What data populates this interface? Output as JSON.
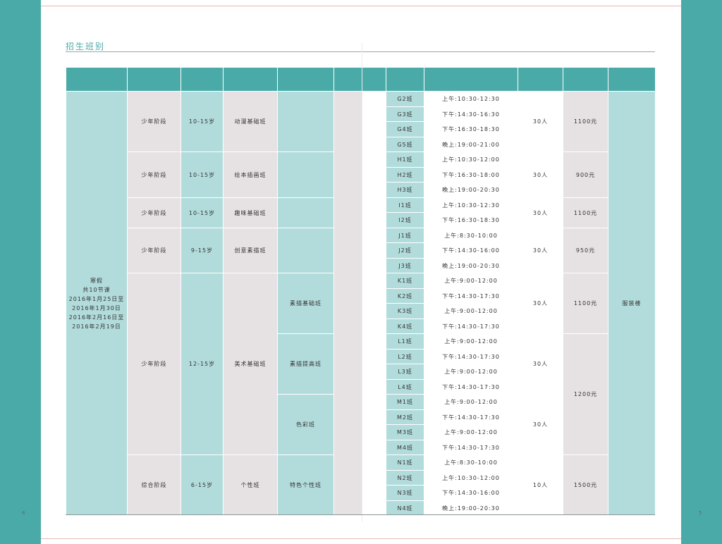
{
  "page": {
    "title": "招生班别",
    "page_left": "4",
    "page_right": "5"
  },
  "colors": {
    "accent": "#4aaaa8",
    "teal_light": "#b2dcdb",
    "gray_light": "#e6e1e2",
    "rule": "#e2b8b0"
  },
  "table": {
    "term": "寒假\n共10节课\n2016年1月25日至\n2016年1月30日\n2016年2月16日至\n2016年2月19日",
    "location": "服装楼",
    "groups": [
      {
        "stage": "少年阶段",
        "age": "10-15岁",
        "course": "动漫基础班",
        "capacity": "30人",
        "price": "1100元"
      },
      {
        "stage": "少年阶段",
        "age": "10-15岁",
        "course": "绘本插画班",
        "capacity": "30人",
        "price": "900元"
      },
      {
        "stage": "少年阶段",
        "age": "10-15岁",
        "course": "趣味基础班",
        "capacity": "30人",
        "price": "1100元"
      },
      {
        "stage": "少年阶段",
        "age": "9-15岁",
        "course": "创意素描班",
        "capacity": "30人",
        "price": "950元"
      },
      {
        "stage": "少年阶段",
        "age": "12-15岁",
        "course": "美术基础班"
      },
      {
        "stage": "综合阶段",
        "age": "6-15岁",
        "course": "个性班",
        "sub": "特色个性班",
        "capacity": "10人",
        "price": "1500元"
      }
    ],
    "art_subs": [
      {
        "sub": "素描基础班",
        "capacity": "30人",
        "price": "1100元"
      },
      {
        "sub": "素描提高班",
        "capacity": "30人"
      },
      {
        "sub": "色彩班",
        "capacity": "30人"
      }
    ],
    "art_price_shared": "1200元",
    "sessions": [
      {
        "cls": "G2班",
        "time": "上午:10:30-12:30"
      },
      {
        "cls": "G3班",
        "time": "下午:14:30-16:30"
      },
      {
        "cls": "G4班",
        "time": "下午:16:30-18:30"
      },
      {
        "cls": "G5班",
        "time": "晚上:19:00-21:00"
      },
      {
        "cls": "H1班",
        "time": "上午:10:30-12:00"
      },
      {
        "cls": "H2班",
        "time": "下午:16:30-18:00"
      },
      {
        "cls": "H3班",
        "time": "晚上:19:00-20:30"
      },
      {
        "cls": "I1班",
        "time": "上午:10:30-12:30"
      },
      {
        "cls": "I2班",
        "time": "下午:16:30-18:30"
      },
      {
        "cls": "J1班",
        "time": "上午:8:30-10:00"
      },
      {
        "cls": "J2班",
        "time": "下午:14:30-16:00"
      },
      {
        "cls": "J3班",
        "time": "晚上:19:00-20:30"
      },
      {
        "cls": "K1班",
        "time": "上午:9:00-12:00"
      },
      {
        "cls": "K2班",
        "time": "下午:14:30-17:30"
      },
      {
        "cls": "K3班",
        "time": "上午:9:00-12:00"
      },
      {
        "cls": "K4班",
        "time": "下午:14:30-17:30"
      },
      {
        "cls": "L1班",
        "time": "上午:9:00-12:00"
      },
      {
        "cls": "L2班",
        "time": "下午:14:30-17:30"
      },
      {
        "cls": "L3班",
        "time": "上午:9:00-12:00"
      },
      {
        "cls": "L4班",
        "time": "下午:14:30-17:30"
      },
      {
        "cls": "M1班",
        "time": "上午:9:00-12:00"
      },
      {
        "cls": "M2班",
        "time": "下午:14:30-17:30"
      },
      {
        "cls": "M3班",
        "time": "上午:9:00-12:00"
      },
      {
        "cls": "M4班",
        "time": "下午:14:30-17:30"
      },
      {
        "cls": "N1班",
        "time": "上午:8:30-10:00"
      },
      {
        "cls": "N2班",
        "time": "上午:10:30-12:00"
      },
      {
        "cls": "N3班",
        "time": "下午:14:30-16:00"
      },
      {
        "cls": "N4班",
        "time": "晚上:19:00-20:30"
      }
    ]
  }
}
